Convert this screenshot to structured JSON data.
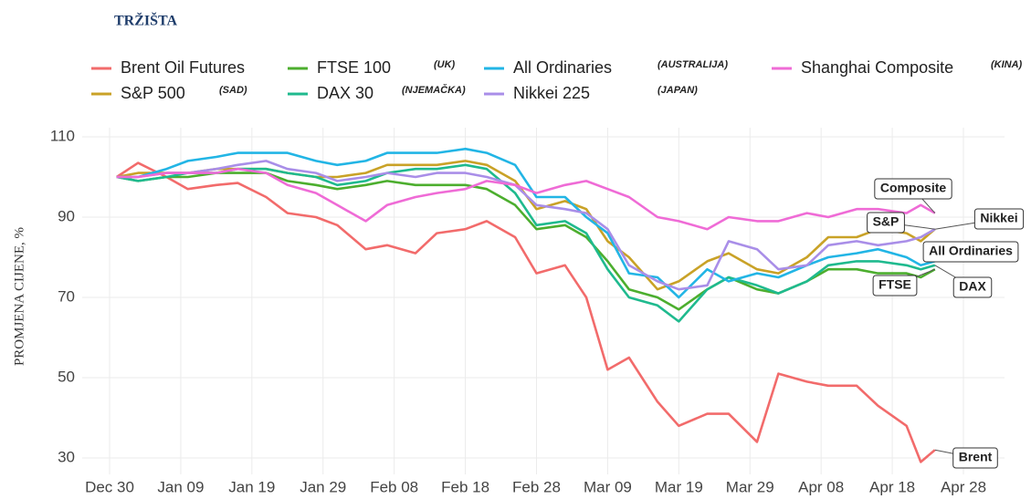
{
  "chart_data": {
    "type": "line",
    "title": "TRŽIŠTA",
    "y_label": "PROMJENA CIJENE, %",
    "x": [
      "Dec 31",
      "Jan 03",
      "Jan 07",
      "Jan 10",
      "Jan 14",
      "Jan 17",
      "Jan 21",
      "Jan 24",
      "Jan 28",
      "Jan 31",
      "Feb 04",
      "Feb 07",
      "Feb 11",
      "Feb 14",
      "Feb 18",
      "Feb 21",
      "Feb 25",
      "Feb 28",
      "Mar 03",
      "Mar 06",
      "Mar 09",
      "Mar 12",
      "Mar 16",
      "Mar 19",
      "Mar 23",
      "Mar 26",
      "Mar 30",
      "Apr 02",
      "Apr 06",
      "Apr 09",
      "Apr 13",
      "Apr 16",
      "Apr 20",
      "Apr 22",
      "Apr 24"
    ],
    "xticks": [
      "Dec 30",
      "Jan 09",
      "Jan 19",
      "Jan 29",
      "Feb 08",
      "Feb 18",
      "Feb 28",
      "Mar 09",
      "Mar 19",
      "Mar 29",
      "Apr 08",
      "Apr 18",
      "Apr 28"
    ],
    "ylim": [
      28,
      112
    ],
    "yticks": [
      30,
      50,
      70,
      90,
      110
    ],
    "grid": true,
    "series": [
      {
        "name": "Brent Oil Futures",
        "label": "Brent",
        "color": "#f26b6b",
        "values": [
          100,
          103.5,
          100,
          97,
          98,
          98.5,
          95,
          91,
          90,
          88,
          82,
          83,
          81,
          86,
          87,
          89,
          85,
          76,
          78,
          70,
          52,
          55,
          44,
          38,
          41,
          41,
          34,
          51,
          49,
          48,
          48,
          43,
          38,
          29,
          32
        ]
      },
      {
        "name": "S&P 500",
        "note": "(SAD)",
        "label": "S&P",
        "color": "#c9a227",
        "values": [
          100,
          101,
          101,
          101,
          102,
          102,
          102,
          101,
          100,
          100,
          101,
          103,
          103,
          103,
          104,
          103,
          99,
          92,
          94,
          92,
          84,
          80,
          72,
          74,
          79,
          81,
          77,
          76,
          80,
          85,
          85,
          87,
          86,
          84,
          87
        ]
      },
      {
        "name": "FTSE 100",
        "note": "(UK)",
        "label": "FTSE",
        "color": "#4cae2e",
        "values": [
          100,
          99,
          100,
          100,
          101,
          101,
          101,
          99,
          98,
          97,
          98,
          99,
          98,
          98,
          98,
          97,
          93,
          87,
          88,
          85,
          79,
          72,
          70,
          67,
          72,
          75,
          72,
          71,
          74,
          77,
          77,
          76,
          76,
          75,
          77
        ]
      },
      {
        "name": "DAX 30",
        "note": "(NJEMAČKA)",
        "label": "DAX",
        "color": "#1fba8e",
        "values": [
          100,
          99,
          100,
          101,
          101,
          102,
          102,
          101,
          100,
          98,
          99,
          101,
          102,
          102,
          103,
          102,
          96,
          88,
          89,
          86,
          77,
          70,
          68,
          64,
          72,
          75,
          73,
          71,
          74,
          78,
          79,
          79,
          78,
          77,
          78
        ]
      },
      {
        "name": "All Ordinaries",
        "note": "(AUSTRALIJA)",
        "label": "All Ordinaries",
        "color": "#22b5e5",
        "values": [
          100,
          100,
          102,
          104,
          105,
          106,
          106,
          106,
          104,
          103,
          104,
          106,
          106,
          106,
          107,
          106,
          103,
          95,
          95,
          90,
          86,
          76,
          75,
          70,
          77,
          74,
          76,
          75,
          78,
          80,
          81,
          82,
          80,
          78,
          79
        ]
      },
      {
        "name": "Nikkei 225",
        "note": "(JAPAN)",
        "label": "Nikkei",
        "color": "#a98ee8",
        "values": [
          100,
          100,
          101,
          101,
          102,
          103,
          104,
          102,
          101,
          99,
          100,
          101,
          100,
          101,
          101,
          100,
          98,
          93,
          92,
          91,
          87,
          78,
          74,
          72,
          73,
          84,
          82,
          77,
          78,
          83,
          84,
          83,
          84,
          85,
          87
        ]
      },
      {
        "name": "Shanghai Composite",
        "note": "(KINA)",
        "label": "Composite",
        "color": "#ef6bd6",
        "values": [
          100,
          100,
          101,
          101,
          101,
          102,
          101,
          98,
          96,
          93,
          89,
          93,
          95,
          96,
          97,
          99,
          98,
          96,
          98,
          99,
          97,
          95,
          90,
          89,
          87,
          90,
          89,
          89,
          91,
          90,
          92,
          92,
          91,
          93,
          91
        ]
      }
    ]
  }
}
